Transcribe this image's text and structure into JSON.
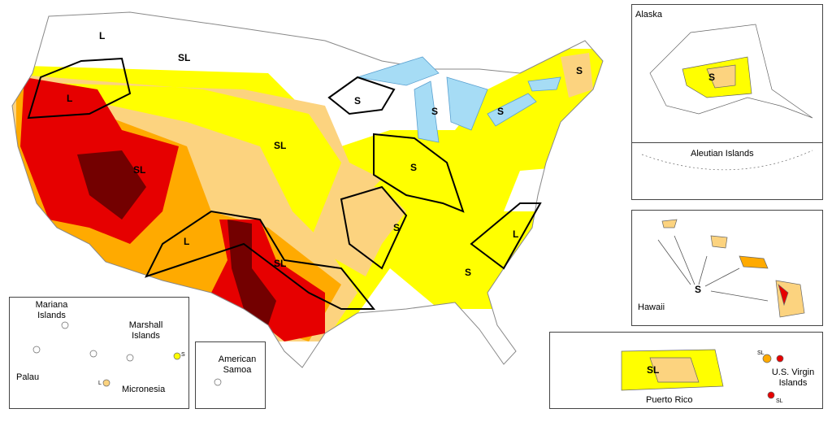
{
  "main_map": {
    "impact_labels": [
      "L",
      "SL",
      "L",
      "SL",
      "SL",
      "L",
      "SL",
      "S",
      "S",
      "S",
      "S",
      "S",
      "S",
      "L",
      "S"
    ]
  },
  "insets": {
    "alaska": {
      "title": "Alaska",
      "impact_label": "S",
      "subregion": "Aleutian Islands"
    },
    "hawaii": {
      "title": "Hawaii",
      "impact_label": "S"
    },
    "puerto_rico": {
      "title": "Puerto Rico",
      "impact_label": "SL",
      "virgin_islands": "U.S. Virgin Islands",
      "virgin_islands_labels": [
        "SL",
        "SL"
      ]
    },
    "pacific": {
      "labels": [
        "Mariana Islands",
        "Marshall Islands",
        "Palau",
        "Micronesia"
      ],
      "impact_labels": [
        "S",
        "L"
      ]
    },
    "american_samoa": {
      "title": "American Samoa"
    }
  }
}
